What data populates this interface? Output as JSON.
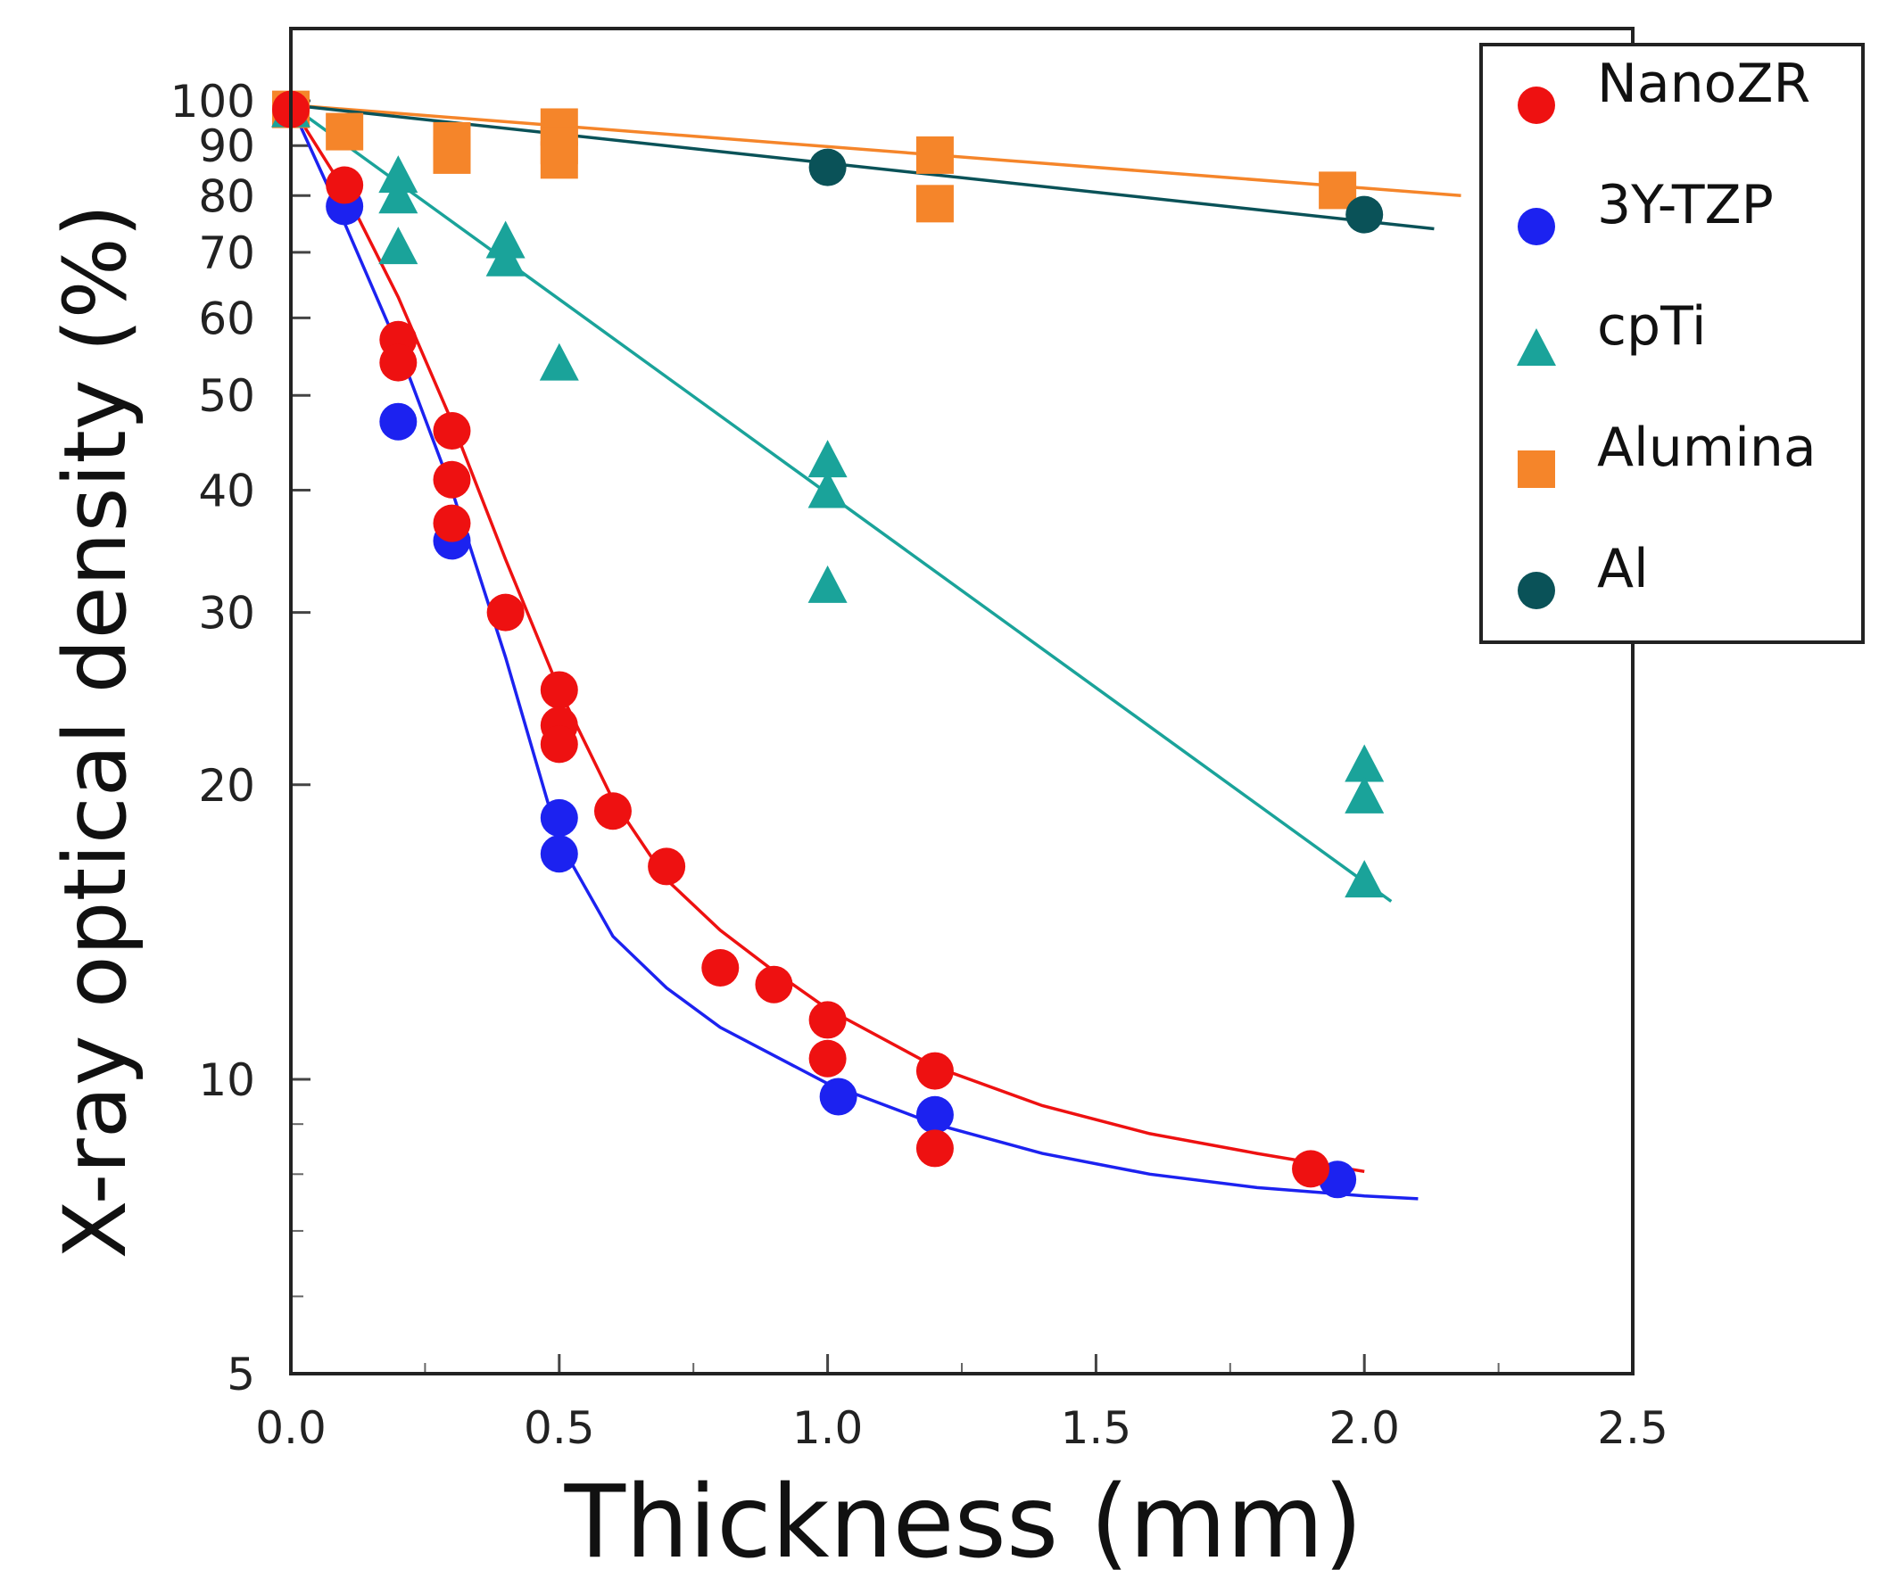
{
  "chart_data": {
    "type": "scatter",
    "xlabel": "Thickness  (mm)",
    "ylabel": "X-ray optical density  (%)",
    "xlim": [
      0,
      2.5
    ],
    "ylim": [
      5,
      120
    ],
    "yscale": "log",
    "legend_position": "top-right",
    "x_ticks": [
      0.0,
      0.5,
      1.0,
      1.5,
      2.0,
      2.5
    ],
    "x_tick_labels": [
      "0.0",
      "0.5",
      "1.0",
      "1.5",
      "2.0",
      "2.5"
    ],
    "y_ticks": [
      5,
      10,
      20,
      30,
      40,
      50,
      60,
      70,
      80,
      90,
      100
    ],
    "y_tick_labels": [
      "5",
      "10",
      "20",
      "30",
      "40",
      "50",
      "60",
      "70",
      "80",
      "90",
      "100"
    ],
    "y_minor_ticks": [
      6,
      7,
      8,
      9
    ],
    "series": [
      {
        "name": "NanoZR",
        "marker": "circle",
        "color": "#ee1111",
        "points": [
          [
            0.0,
            98
          ],
          [
            0.1,
            82
          ],
          [
            0.2,
            57
          ],
          [
            0.2,
            54
          ],
          [
            0.3,
            46
          ],
          [
            0.3,
            41
          ],
          [
            0.3,
            37
          ],
          [
            0.4,
            30
          ],
          [
            0.5,
            25
          ],
          [
            0.5,
            23
          ],
          [
            0.5,
            22
          ],
          [
            0.6,
            18.8
          ],
          [
            0.7,
            16.5
          ],
          [
            0.8,
            13
          ],
          [
            0.9,
            12.5
          ],
          [
            1.0,
            11.5
          ],
          [
            1.0,
            10.5
          ],
          [
            1.2,
            10.2
          ],
          [
            1.2,
            8.5
          ],
          [
            1.9,
            8.1
          ]
        ],
        "fit": [
          [
            0.0,
            99
          ],
          [
            0.1,
            81
          ],
          [
            0.2,
            63
          ],
          [
            0.3,
            47
          ],
          [
            0.4,
            34
          ],
          [
            0.5,
            25
          ],
          [
            0.6,
            19.3
          ],
          [
            0.7,
            16
          ],
          [
            0.8,
            14.2
          ],
          [
            0.9,
            12.9
          ],
          [
            1.0,
            11.8
          ],
          [
            1.2,
            10.3
          ],
          [
            1.4,
            9.4
          ],
          [
            1.6,
            8.8
          ],
          [
            1.8,
            8.4
          ],
          [
            2.0,
            8.05
          ]
        ]
      },
      {
        "name": "3Y-TZP",
        "marker": "circle",
        "color": "#1c22f0",
        "points": [
          [
            0.1,
            78
          ],
          [
            0.2,
            47
          ],
          [
            0.3,
            35.5
          ],
          [
            0.5,
            18.5
          ],
          [
            0.5,
            17
          ],
          [
            1.02,
            9.6
          ],
          [
            1.2,
            9.2
          ],
          [
            1.95,
            7.9
          ]
        ],
        "fit": [
          [
            0.0,
            99
          ],
          [
            0.1,
            75
          ],
          [
            0.2,
            56
          ],
          [
            0.3,
            40
          ],
          [
            0.4,
            27
          ],
          [
            0.5,
            17.5
          ],
          [
            0.6,
            14
          ],
          [
            0.7,
            12.4
          ],
          [
            0.8,
            11.3
          ],
          [
            1.0,
            9.9
          ],
          [
            1.2,
            9.0
          ],
          [
            1.4,
            8.4
          ],
          [
            1.6,
            8.0
          ],
          [
            1.8,
            7.75
          ],
          [
            2.0,
            7.6
          ],
          [
            2.1,
            7.55
          ]
        ]
      },
      {
        "name": "cpTi",
        "marker": "triangle",
        "color": "#1aa39a",
        "points": [
          [
            0.0,
            98
          ],
          [
            0.2,
            84
          ],
          [
            0.2,
            80
          ],
          [
            0.2,
            71
          ],
          [
            0.4,
            72
          ],
          [
            0.4,
            69
          ],
          [
            0.5,
            54
          ],
          [
            1.0,
            43
          ],
          [
            1.0,
            40
          ],
          [
            1.0,
            32
          ],
          [
            2.0,
            21
          ],
          [
            2.0,
            19.5
          ],
          [
            2.0,
            16
          ]
        ],
        "fit": [
          [
            0.0,
            99
          ],
          [
            2.05,
            15.2
          ]
        ]
      },
      {
        "name": "Alumina",
        "marker": "square",
        "color": "#f5852a",
        "points": [
          [
            0.0,
            98
          ],
          [
            0.1,
            93
          ],
          [
            0.3,
            91
          ],
          [
            0.3,
            88
          ],
          [
            0.5,
            94
          ],
          [
            0.5,
            90
          ],
          [
            0.5,
            87
          ],
          [
            1.2,
            88
          ],
          [
            1.2,
            78.5
          ],
          [
            1.95,
            81
          ]
        ],
        "fit": [
          [
            0.0,
            99
          ],
          [
            2.18,
            80
          ]
        ]
      },
      {
        "name": "Al",
        "marker": "circle",
        "color": "#0a5258",
        "points": [
          [
            1.0,
            85.5
          ],
          [
            2.0,
            76.5
          ]
        ],
        "fit": [
          [
            0.0,
            99
          ],
          [
            2.13,
            74
          ]
        ]
      }
    ]
  }
}
